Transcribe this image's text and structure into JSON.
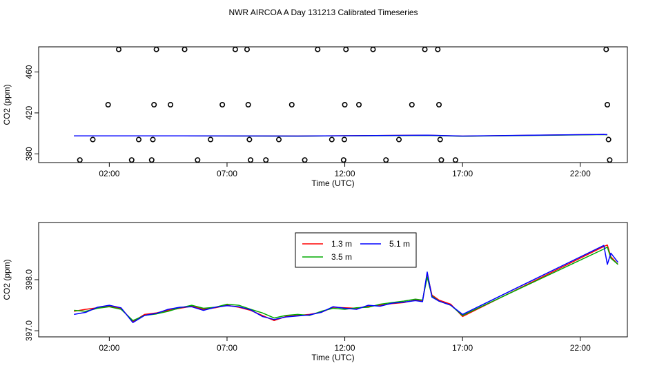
{
  "chart_data": [
    {
      "id": "top",
      "type": "scatter",
      "title": "NWR AIRCOA A  Day 131213  Calibrated Timeseries",
      "xlabel": "Time (UTC)",
      "ylabel": "CO2 (ppm)",
      "xlim": [
        -1.0,
        24.0
      ],
      "ylim": [
        371.5,
        484.5
      ],
      "xticks": [
        2,
        7,
        12,
        17,
        22
      ],
      "xtick_labels": [
        "02:00",
        "07:00",
        "12:00",
        "17:00",
        "22:00"
      ],
      "yticks": [
        380,
        420,
        460
      ],
      "ytick_labels": [
        "380",
        "420",
        "460"
      ],
      "scatter_points": [
        {
          "x": 0.75,
          "y": 374
        },
        {
          "x": 1.3,
          "y": 394
        },
        {
          "x": 1.95,
          "y": 428
        },
        {
          "x": 2.4,
          "y": 482
        },
        {
          "x": 2.95,
          "y": 374
        },
        {
          "x": 3.25,
          "y": 394
        },
        {
          "x": 3.8,
          "y": 374
        },
        {
          "x": 3.85,
          "y": 394
        },
        {
          "x": 3.9,
          "y": 428
        },
        {
          "x": 4.0,
          "y": 482
        },
        {
          "x": 4.6,
          "y": 428
        },
        {
          "x": 5.2,
          "y": 482
        },
        {
          "x": 5.75,
          "y": 374
        },
        {
          "x": 6.3,
          "y": 394
        },
        {
          "x": 6.8,
          "y": 428
        },
        {
          "x": 7.35,
          "y": 482
        },
        {
          "x": 7.85,
          "y": 482
        },
        {
          "x": 7.9,
          "y": 428
        },
        {
          "x": 7.95,
          "y": 394
        },
        {
          "x": 8.0,
          "y": 374
        },
        {
          "x": 8.65,
          "y": 374
        },
        {
          "x": 9.2,
          "y": 394
        },
        {
          "x": 9.75,
          "y": 428
        },
        {
          "x": 10.3,
          "y": 374
        },
        {
          "x": 10.85,
          "y": 482
        },
        {
          "x": 11.45,
          "y": 394
        },
        {
          "x": 11.95,
          "y": 374
        },
        {
          "x": 11.98,
          "y": 394
        },
        {
          "x": 12.0,
          "y": 428
        },
        {
          "x": 12.05,
          "y": 482
        },
        {
          "x": 12.6,
          "y": 428
        },
        {
          "x": 13.2,
          "y": 482
        },
        {
          "x": 13.75,
          "y": 374
        },
        {
          "x": 14.3,
          "y": 394
        },
        {
          "x": 14.85,
          "y": 428
        },
        {
          "x": 15.4,
          "y": 482
        },
        {
          "x": 15.95,
          "y": 482
        },
        {
          "x": 16.0,
          "y": 428
        },
        {
          "x": 16.05,
          "y": 394
        },
        {
          "x": 16.1,
          "y": 374
        },
        {
          "x": 16.7,
          "y": 374
        },
        {
          "x": 23.1,
          "y": 482
        },
        {
          "x": 23.15,
          "y": 428
        },
        {
          "x": 23.2,
          "y": 394
        },
        {
          "x": 23.25,
          "y": 374
        }
      ],
      "series": [
        {
          "color": "#ff0000",
          "x": [
            0.5,
            5,
            10,
            15.5,
            17,
            23,
            23.15
          ],
          "y": [
            397.6,
            397.6,
            397.4,
            398.2,
            397.3,
            399.0,
            398.7
          ]
        },
        {
          "color": "#00aa00",
          "x": [
            0.5,
            5,
            10,
            15.5,
            17,
            23,
            23.15
          ],
          "y": [
            397.6,
            397.5,
            397.3,
            398.0,
            397.2,
            398.8,
            398.6
          ]
        },
        {
          "color": "#0000ff",
          "x": [
            0.5,
            5,
            10,
            15.5,
            17,
            23,
            23.15
          ],
          "y": [
            397.6,
            397.6,
            397.4,
            398.3,
            397.4,
            399.0,
            398.8
          ]
        }
      ]
    },
    {
      "id": "bottom",
      "type": "line",
      "title": "",
      "xlabel": "Time (UTC)",
      "ylabel": "CO2 (ppm)",
      "xlim": [
        -1.0,
        24.0
      ],
      "ylim": [
        396.88,
        399.12
      ],
      "xticks": [
        2,
        7,
        12,
        17,
        22
      ],
      "xtick_labels": [
        "02:00",
        "07:00",
        "12:00",
        "17:00",
        "22:00"
      ],
      "yticks": [
        397.0,
        398.0
      ],
      "ytick_labels": [
        "397.0",
        "398.0"
      ],
      "legend": {
        "position": "top-center",
        "entries": [
          {
            "label": "1.3 m",
            "color": "#ff0000"
          },
          {
            "label": "3.5 m",
            "color": "#00aa00"
          },
          {
            "label": "5.1 m",
            "color": "#0000ff"
          }
        ]
      },
      "series": [
        {
          "name": "1.3 m",
          "color": "#ff0000",
          "x": [
            0.5,
            1.0,
            1.5,
            2.0,
            2.5,
            3.0,
            3.5,
            4.0,
            4.5,
            5.0,
            5.5,
            6.0,
            6.5,
            7.0,
            7.5,
            8.0,
            8.5,
            9.0,
            9.5,
            10.0,
            10.5,
            11.0,
            11.5,
            12.0,
            12.5,
            13.0,
            13.5,
            14.0,
            14.5,
            15.0,
            15.3,
            15.5,
            15.7,
            16.0,
            16.5,
            17.0,
            23.0,
            23.15,
            23.3,
            23.6
          ],
          "y": [
            397.38,
            397.42,
            397.45,
            397.48,
            397.44,
            397.18,
            397.32,
            397.35,
            397.4,
            397.44,
            397.48,
            397.42,
            397.45,
            397.5,
            397.46,
            397.4,
            397.3,
            397.2,
            397.28,
            397.3,
            397.32,
            397.36,
            397.46,
            397.45,
            397.44,
            397.48,
            397.5,
            397.53,
            397.55,
            397.6,
            397.58,
            398.12,
            397.7,
            397.6,
            397.52,
            397.28,
            398.65,
            398.68,
            398.45,
            398.3
          ]
        },
        {
          "name": "3.5 m",
          "color": "#00aa00",
          "x": [
            0.5,
            1.0,
            1.5,
            2.0,
            2.5,
            3.0,
            3.5,
            4.0,
            4.5,
            5.0,
            5.5,
            6.0,
            6.5,
            7.0,
            7.5,
            8.0,
            8.5,
            9.0,
            9.5,
            10.0,
            10.5,
            11.0,
            11.5,
            12.0,
            12.5,
            13.0,
            13.5,
            14.0,
            14.5,
            15.0,
            15.3,
            15.5,
            15.7,
            16.0,
            16.5,
            17.0,
            23.0,
            23.15,
            23.3,
            23.6
          ],
          "y": [
            397.4,
            397.38,
            397.44,
            397.47,
            397.42,
            397.2,
            397.3,
            397.33,
            397.38,
            397.45,
            397.5,
            397.44,
            397.46,
            397.52,
            397.5,
            397.42,
            397.35,
            397.25,
            397.3,
            397.32,
            397.3,
            397.38,
            397.44,
            397.42,
            397.45,
            397.46,
            397.52,
            397.55,
            397.58,
            397.62,
            397.6,
            398.05,
            397.68,
            397.58,
            397.5,
            397.3,
            398.6,
            398.64,
            398.42,
            398.3
          ]
        },
        {
          "name": "5.1 m",
          "color": "#0000ff",
          "x": [
            0.5,
            1.0,
            1.5,
            2.0,
            2.5,
            3.0,
            3.5,
            4.0,
            4.5,
            5.0,
            5.5,
            6.0,
            6.5,
            7.0,
            7.5,
            8.0,
            8.5,
            9.0,
            9.5,
            10.0,
            10.5,
            11.0,
            11.5,
            12.0,
            12.5,
            13.0,
            13.5,
            14.0,
            14.5,
            15.0,
            15.3,
            15.5,
            15.7,
            16.0,
            16.5,
            17.0,
            23.0,
            23.15,
            23.3,
            23.6
          ],
          "y": [
            397.32,
            397.36,
            397.46,
            397.5,
            397.45,
            397.16,
            397.3,
            397.34,
            397.42,
            397.46,
            397.47,
            397.4,
            397.46,
            397.49,
            397.47,
            397.41,
            397.28,
            397.22,
            397.27,
            397.29,
            397.31,
            397.36,
            397.47,
            397.44,
            397.42,
            397.5,
            397.48,
            397.54,
            397.56,
            397.59,
            397.57,
            398.15,
            397.66,
            397.58,
            397.5,
            397.32,
            398.67,
            398.3,
            398.52,
            398.34
          ]
        }
      ]
    }
  ]
}
